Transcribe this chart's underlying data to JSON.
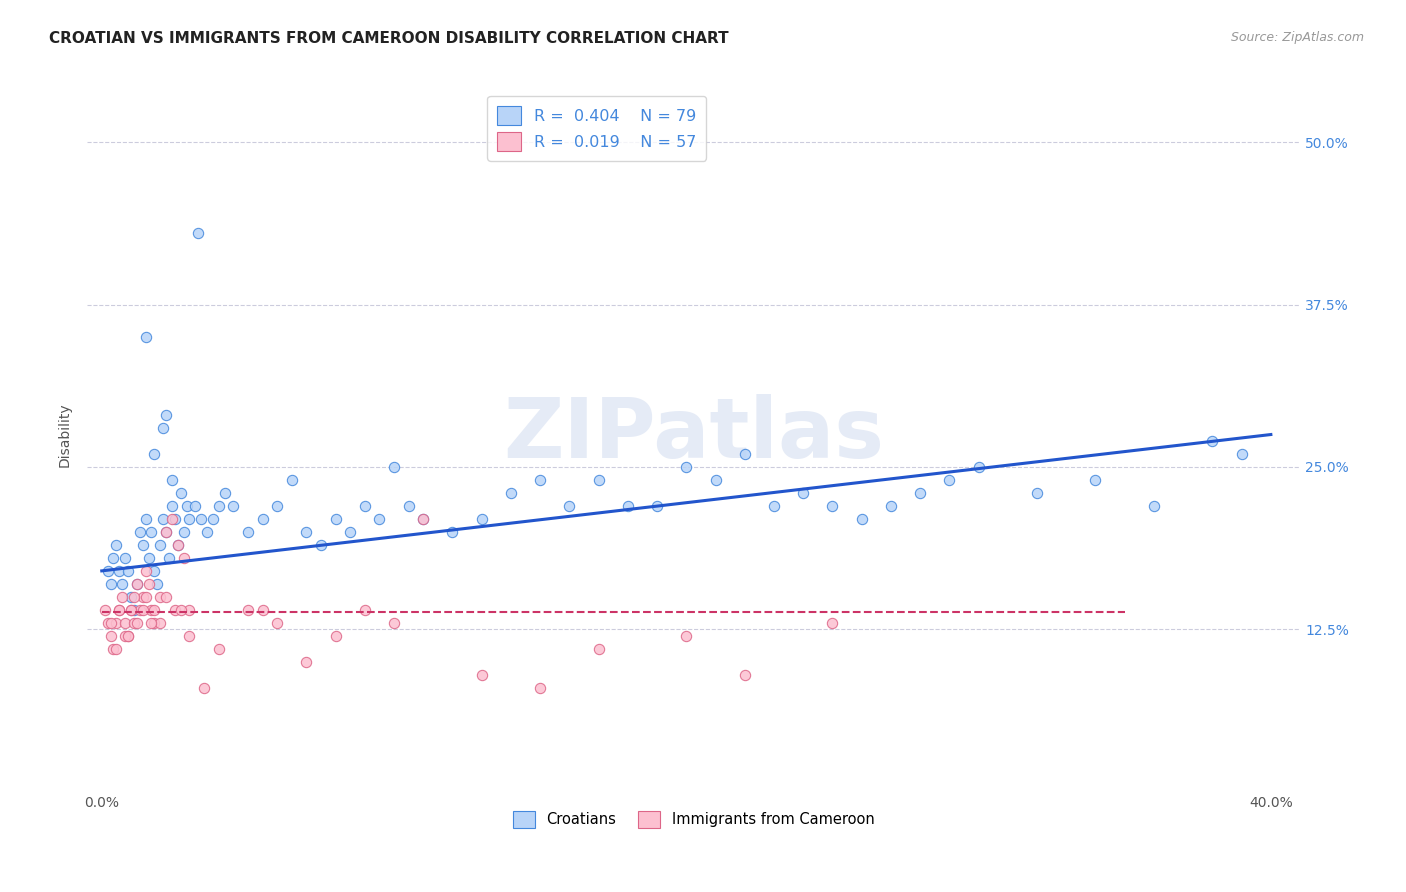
{
  "title": "CROATIAN VS IMMIGRANTS FROM CAMEROON DISABILITY CORRELATION CHART",
  "source": "Source: ZipAtlas.com",
  "ylabel": "Disability",
  "watermark": "ZIPatlas",
  "croatians": {
    "R": 0.404,
    "N": 79,
    "color": "#b8d4f8",
    "edge_color": "#4488dd",
    "line_color": "#2255cc",
    "x": [
      0.2,
      0.3,
      0.4,
      0.5,
      0.6,
      0.7,
      0.8,
      0.9,
      1.0,
      1.1,
      1.2,
      1.3,
      1.4,
      1.5,
      1.6,
      1.7,
      1.8,
      1.9,
      2.0,
      2.1,
      2.2,
      2.3,
      2.4,
      2.5,
      2.6,
      2.7,
      2.8,
      2.9,
      3.0,
      3.2,
      3.4,
      3.6,
      3.8,
      4.0,
      4.2,
      4.5,
      5.0,
      5.5,
      6.0,
      6.5,
      7.0,
      7.5,
      8.0,
      8.5,
      9.0,
      9.5,
      10.0,
      10.5,
      11.0,
      12.0,
      13.0,
      14.0,
      15.0,
      16.0,
      17.0,
      18.0,
      19.0,
      20.0,
      21.0,
      22.0,
      23.0,
      24.0,
      25.0,
      26.0,
      27.0,
      28.0,
      29.0,
      30.0,
      32.0,
      34.0,
      36.0,
      38.0,
      39.0,
      3.3,
      2.2,
      1.5,
      1.8,
      2.1,
      2.4
    ],
    "y": [
      17,
      16,
      18,
      19,
      17,
      16,
      18,
      17,
      15,
      14,
      16,
      20,
      19,
      21,
      18,
      20,
      17,
      16,
      19,
      21,
      20,
      18,
      22,
      21,
      19,
      23,
      20,
      22,
      21,
      22,
      21,
      20,
      21,
      22,
      23,
      22,
      20,
      21,
      22,
      24,
      20,
      19,
      21,
      20,
      22,
      21,
      25,
      22,
      21,
      20,
      21,
      23,
      24,
      22,
      24,
      22,
      22,
      25,
      24,
      26,
      22,
      23,
      22,
      21,
      22,
      23,
      24,
      25,
      23,
      24,
      22,
      27,
      26,
      43,
      29,
      35,
      26,
      28,
      24
    ]
  },
  "cameroon": {
    "R": 0.019,
    "N": 57,
    "color": "#fcc0d0",
    "edge_color": "#dd6688",
    "line_color": "#cc3366",
    "x": [
      0.1,
      0.2,
      0.3,
      0.4,
      0.5,
      0.6,
      0.7,
      0.8,
      0.9,
      1.0,
      1.1,
      1.2,
      1.3,
      1.4,
      1.5,
      1.6,
      1.7,
      1.8,
      2.0,
      2.2,
      2.4,
      2.6,
      2.8,
      3.0,
      3.5,
      4.0,
      5.0,
      5.5,
      6.0,
      7.0,
      8.0,
      9.0,
      10.0,
      11.0,
      13.0,
      15.0,
      17.0,
      20.0,
      22.0,
      25.0,
      0.5,
      0.8,
      1.0,
      1.2,
      1.5,
      1.8,
      2.0,
      2.5,
      3.0,
      0.3,
      0.6,
      0.9,
      1.1,
      1.4,
      1.7,
      2.2,
      2.7
    ],
    "y": [
      14,
      13,
      12,
      11,
      13,
      14,
      15,
      13,
      12,
      14,
      13,
      16,
      14,
      15,
      17,
      16,
      14,
      13,
      15,
      20,
      21,
      19,
      18,
      14,
      8,
      11,
      14,
      14,
      13,
      10,
      12,
      14,
      13,
      21,
      9,
      8,
      11,
      12,
      9,
      13,
      11,
      12,
      14,
      13,
      15,
      14,
      13,
      14,
      12,
      13,
      14,
      12,
      15,
      14,
      13,
      15,
      14
    ]
  },
  "line_blue_x0": 0,
  "line_blue_x1": 40,
  "line_blue_y0": 17.0,
  "line_blue_y1": 27.5,
  "line_pink_x0": 0,
  "line_pink_x1": 35,
  "line_pink_y0": 13.8,
  "line_pink_y1": 13.8,
  "xlim_min": -0.5,
  "xlim_max": 41,
  "ylim_min": 0,
  "ylim_max": 55,
  "yticks": [
    12.5,
    25.0,
    37.5,
    50.0
  ],
  "xticks": [
    0,
    10,
    20,
    30,
    40
  ],
  "grid_color": "#ccccdd",
  "bg_color": "#ffffff",
  "title_fontsize": 11,
  "source_fontsize": 9,
  "ylabel_fontsize": 10,
  "tick_fontsize": 10,
  "right_tick_color": "#4488dd",
  "watermark_color": "#ccd8ee",
  "watermark_alpha": 0.5,
  "watermark_fontsize": 60
}
